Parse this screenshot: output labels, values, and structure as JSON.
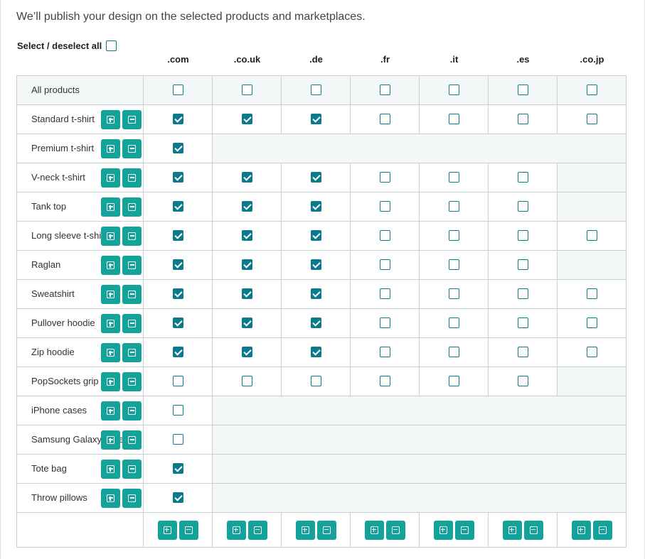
{
  "intro": "We’ll publish your design on the selected products and marketplaces.",
  "select_all": {
    "label": "Select / deselect all",
    "checked": false
  },
  "marketplaces": [
    ".com",
    ".co.uk",
    ".de",
    ".fr",
    ".it",
    ".es",
    ".co.jp"
  ],
  "all_products": {
    "label": "All products",
    "values": [
      false,
      false,
      false,
      false,
      false,
      false,
      false
    ]
  },
  "products": [
    {
      "name": "Standard t-shirt",
      "values": [
        true,
        true,
        true,
        false,
        false,
        false,
        false
      ]
    },
    {
      "name": "Premium t-shirt",
      "values": [
        true,
        null,
        null,
        null,
        null,
        null,
        null
      ]
    },
    {
      "name": "V-neck t-shirt",
      "values": [
        true,
        true,
        true,
        false,
        false,
        false,
        null
      ]
    },
    {
      "name": "Tank top",
      "values": [
        true,
        true,
        true,
        false,
        false,
        false,
        null
      ]
    },
    {
      "name": "Long sleeve t-shirt",
      "values": [
        true,
        true,
        true,
        false,
        false,
        false,
        false
      ]
    },
    {
      "name": "Raglan",
      "values": [
        true,
        true,
        true,
        false,
        false,
        false,
        null
      ]
    },
    {
      "name": "Sweatshirt",
      "values": [
        true,
        true,
        true,
        false,
        false,
        false,
        false
      ]
    },
    {
      "name": "Pullover hoodie",
      "values": [
        true,
        true,
        true,
        false,
        false,
        false,
        false
      ]
    },
    {
      "name": "Zip hoodie",
      "values": [
        true,
        true,
        true,
        false,
        false,
        false,
        false
      ]
    },
    {
      "name": "PopSockets grip",
      "values": [
        false,
        false,
        false,
        false,
        false,
        false,
        null
      ]
    },
    {
      "name": "iPhone cases",
      "values": [
        false,
        null,
        null,
        null,
        null,
        null,
        null
      ]
    },
    {
      "name": "Samsung Galaxy cases",
      "values": [
        false,
        null,
        null,
        null,
        null,
        null,
        null
      ]
    },
    {
      "name": "Tote bag",
      "values": [
        true,
        null,
        null,
        null,
        null,
        null,
        null
      ]
    },
    {
      "name": "Throw pillows",
      "values": [
        true,
        null,
        null,
        null,
        null,
        null,
        null
      ]
    }
  ],
  "icons": {
    "add": "plus-square-icon",
    "remove": "minus-square-icon"
  },
  "colors": {
    "accent": "#14a39a",
    "checkbox": "#0a7a8c",
    "empty_cell": "#f4f7f8",
    "border": "#c9d1d4"
  }
}
